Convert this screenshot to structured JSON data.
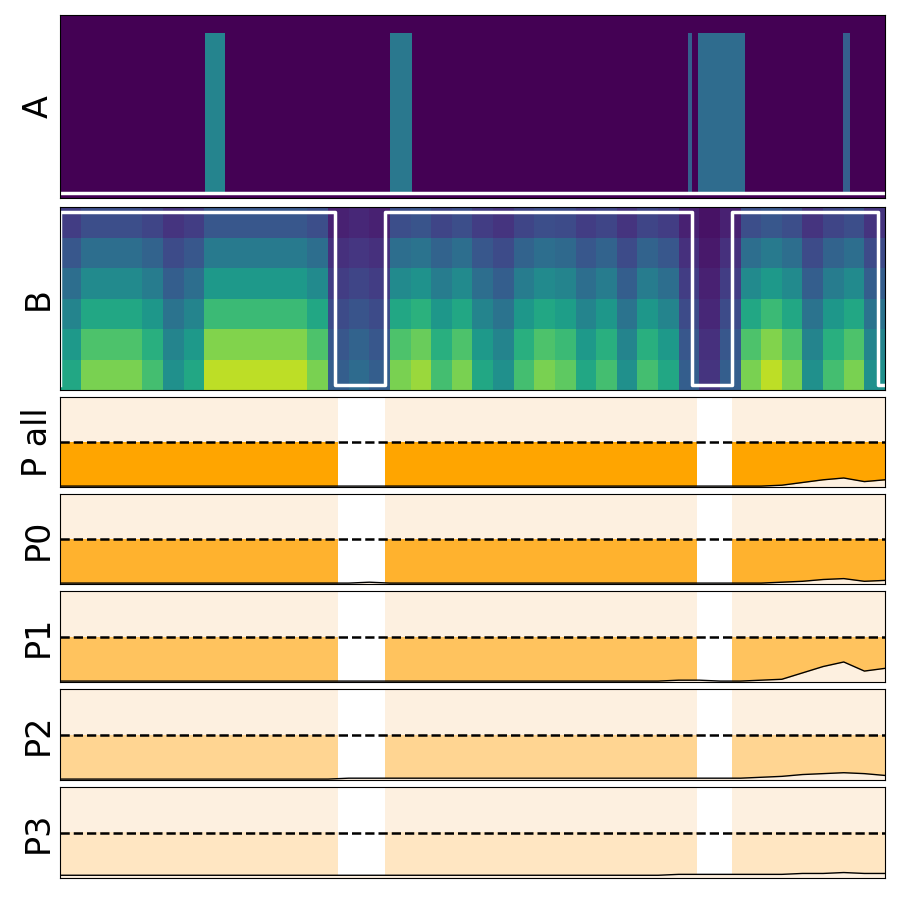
{
  "chart_data": [
    {
      "type": "spectrogram_segments",
      "ylabel": "A",
      "xlim": [
        0,
        100
      ],
      "clim": [
        0,
        1
      ],
      "tick_labels": false,
      "segments": [
        {
          "start": 17.6,
          "end": 20.0,
          "level": 0.45
        },
        {
          "start": 40.0,
          "end": 42.7,
          "level": 0.4
        },
        {
          "start": 76.1,
          "end": 76.6,
          "level": 0.3
        },
        {
          "start": 77.3,
          "end": 83.0,
          "level": 0.35
        },
        {
          "start": 94.9,
          "end": 95.8,
          "level": 0.3
        }
      ],
      "label_segments": []
    },
    {
      "type": "heatmap",
      "ylabel": "B",
      "xlim": [
        0,
        100
      ],
      "clim": [
        0,
        1
      ],
      "tick_labels": false,
      "cells": [
        [
          0.6,
          0.8,
          0.8,
          0.8,
          0.7,
          0.5,
          0.6,
          0.9,
          0.9,
          0.9,
          0.9,
          0.9,
          0.8,
          0.3,
          0.35,
          0.3,
          0.8,
          0.85,
          0.7,
          0.8,
          0.6,
          0.5,
          0.7,
          0.8,
          0.75,
          0.6,
          0.7,
          0.5,
          0.7,
          0.6,
          0.3,
          0.15,
          0.3,
          0.8,
          0.9,
          0.8,
          0.5,
          0.7,
          0.8,
          0.5
        ],
        [
          0.54,
          0.72,
          0.72,
          0.72,
          0.63,
          0.45,
          0.54,
          0.81,
          0.81,
          0.81,
          0.81,
          0.81,
          0.72,
          0.27,
          0.32,
          0.27,
          0.72,
          0.77,
          0.63,
          0.72,
          0.54,
          0.45,
          0.63,
          0.72,
          0.68,
          0.54,
          0.63,
          0.45,
          0.63,
          0.54,
          0.27,
          0.14,
          0.27,
          0.72,
          0.81,
          0.72,
          0.45,
          0.63,
          0.72,
          0.45
        ],
        [
          0.45,
          0.6,
          0.6,
          0.6,
          0.53,
          0.38,
          0.45,
          0.68,
          0.68,
          0.68,
          0.68,
          0.68,
          0.6,
          0.23,
          0.26,
          0.23,
          0.6,
          0.64,
          0.53,
          0.6,
          0.45,
          0.38,
          0.53,
          0.6,
          0.56,
          0.45,
          0.53,
          0.38,
          0.53,
          0.45,
          0.23,
          0.11,
          0.23,
          0.6,
          0.68,
          0.6,
          0.38,
          0.53,
          0.6,
          0.38
        ],
        [
          0.36,
          0.48,
          0.48,
          0.48,
          0.42,
          0.3,
          0.36,
          0.54,
          0.54,
          0.54,
          0.54,
          0.54,
          0.48,
          0.18,
          0.21,
          0.18,
          0.48,
          0.51,
          0.42,
          0.48,
          0.36,
          0.3,
          0.42,
          0.48,
          0.45,
          0.36,
          0.42,
          0.3,
          0.42,
          0.36,
          0.18,
          0.09,
          0.18,
          0.48,
          0.54,
          0.48,
          0.3,
          0.42,
          0.48,
          0.3
        ],
        [
          0.27,
          0.36,
          0.36,
          0.36,
          0.32,
          0.23,
          0.27,
          0.41,
          0.41,
          0.41,
          0.41,
          0.41,
          0.36,
          0.14,
          0.16,
          0.14,
          0.36,
          0.38,
          0.32,
          0.36,
          0.27,
          0.23,
          0.32,
          0.36,
          0.34,
          0.27,
          0.32,
          0.23,
          0.32,
          0.27,
          0.14,
          0.07,
          0.14,
          0.36,
          0.41,
          0.36,
          0.23,
          0.32,
          0.36,
          0.23
        ],
        [
          0.18,
          0.24,
          0.24,
          0.24,
          0.21,
          0.15,
          0.18,
          0.27,
          0.27,
          0.27,
          0.27,
          0.27,
          0.24,
          0.09,
          0.11,
          0.09,
          0.24,
          0.26,
          0.21,
          0.24,
          0.18,
          0.15,
          0.21,
          0.24,
          0.23,
          0.18,
          0.21,
          0.15,
          0.21,
          0.18,
          0.09,
          0.05,
          0.09,
          0.24,
          0.27,
          0.24,
          0.15,
          0.21,
          0.24,
          0.15
        ]
      ],
      "label_segments": [
        [
          0,
          33.3
        ],
        [
          39.4,
          76.6
        ],
        [
          81.5,
          99.2
        ]
      ]
    },
    {
      "type": "line",
      "ylabel": "P all",
      "xlim": [
        0,
        100
      ],
      "ylim": [
        0,
        1
      ],
      "threshold": 0.5,
      "tick_labels": false,
      "color": "#ffa500",
      "speech_segments": [
        [
          0,
          33.7
        ],
        [
          39.4,
          77.2
        ],
        [
          81.5,
          100
        ]
      ],
      "x": [
        0,
        2.5,
        5,
        7.5,
        10,
        12.5,
        15,
        17.5,
        20,
        22.5,
        25,
        27.5,
        30,
        32.5,
        35,
        37.5,
        40,
        42.5,
        45,
        47.5,
        50,
        52.5,
        55,
        57.5,
        60,
        62.5,
        65,
        67.5,
        70,
        72.5,
        75,
        77.5,
        80,
        82.5,
        85,
        87.5,
        90,
        92.5,
        95,
        97.5,
        100
      ],
      "values": [
        0.01,
        0.01,
        0.01,
        0.01,
        0.01,
        0.01,
        0.01,
        0.01,
        0.01,
        0.01,
        0.01,
        0.01,
        0.01,
        0.01,
        0.01,
        0.01,
        0.01,
        0.01,
        0.01,
        0.01,
        0.01,
        0.01,
        0.01,
        0.01,
        0.01,
        0.01,
        0.01,
        0.01,
        0.01,
        0.01,
        0.01,
        0.01,
        0.01,
        0.01,
        0.01,
        0.02,
        0.05,
        0.08,
        0.1,
        0.06,
        0.08
      ]
    },
    {
      "type": "line",
      "ylabel": "P0",
      "xlim": [
        0,
        100
      ],
      "ylim": [
        0,
        1
      ],
      "threshold": 0.5,
      "tick_labels": false,
      "color": "#ffb22e",
      "speech_segments": [
        [
          0,
          33.7
        ],
        [
          39.4,
          77.2
        ],
        [
          81.5,
          100
        ]
      ],
      "x": [
        0,
        2.5,
        5,
        7.5,
        10,
        12.5,
        15,
        17.5,
        20,
        22.5,
        25,
        27.5,
        30,
        32.5,
        35,
        37.5,
        40,
        42.5,
        45,
        47.5,
        50,
        52.5,
        55,
        57.5,
        60,
        62.5,
        65,
        67.5,
        70,
        72.5,
        75,
        77.5,
        80,
        82.5,
        85,
        87.5,
        90,
        92.5,
        95,
        97.5,
        100
      ],
      "values": [
        0.01,
        0.01,
        0.01,
        0.01,
        0.01,
        0.01,
        0.01,
        0.01,
        0.01,
        0.01,
        0.01,
        0.01,
        0.01,
        0.01,
        0.01,
        0.02,
        0.01,
        0.01,
        0.01,
        0.01,
        0.01,
        0.01,
        0.01,
        0.01,
        0.01,
        0.01,
        0.01,
        0.01,
        0.01,
        0.01,
        0.01,
        0.01,
        0.01,
        0.01,
        0.01,
        0.02,
        0.03,
        0.05,
        0.06,
        0.03,
        0.04
      ]
    },
    {
      "type": "line",
      "ylabel": "P1",
      "xlim": [
        0,
        100
      ],
      "ylim": [
        0,
        1
      ],
      "threshold": 0.5,
      "tick_labels": false,
      "color": "#ffc35e",
      "speech_segments": [
        [
          0,
          33.7
        ],
        [
          39.4,
          77.2
        ],
        [
          81.5,
          100
        ]
      ],
      "x": [
        0,
        2.5,
        5,
        7.5,
        10,
        12.5,
        15,
        17.5,
        20,
        22.5,
        25,
        27.5,
        30,
        32.5,
        35,
        37.5,
        40,
        42.5,
        45,
        47.5,
        50,
        52.5,
        55,
        57.5,
        60,
        62.5,
        65,
        67.5,
        70,
        72.5,
        75,
        77.5,
        80,
        82.5,
        85,
        87.5,
        90,
        92.5,
        95,
        97.5,
        100
      ],
      "values": [
        0.01,
        0.01,
        0.01,
        0.01,
        0.01,
        0.01,
        0.01,
        0.01,
        0.01,
        0.01,
        0.01,
        0.01,
        0.01,
        0.01,
        0.01,
        0.01,
        0.01,
        0.01,
        0.01,
        0.01,
        0.01,
        0.01,
        0.01,
        0.01,
        0.01,
        0.01,
        0.01,
        0.01,
        0.01,
        0.01,
        0.02,
        0.02,
        0.01,
        0.01,
        0.02,
        0.03,
        0.1,
        0.17,
        0.22,
        0.12,
        0.15
      ]
    },
    {
      "type": "line",
      "ylabel": "P2",
      "xlim": [
        0,
        100
      ],
      "ylim": [
        0,
        1
      ],
      "threshold": 0.5,
      "tick_labels": false,
      "color": "#ffd592",
      "speech_segments": [
        [
          0,
          33.7
        ],
        [
          39.4,
          77.2
        ],
        [
          81.5,
          100
        ]
      ],
      "x": [
        0,
        2.5,
        5,
        7.5,
        10,
        12.5,
        15,
        17.5,
        20,
        22.5,
        25,
        27.5,
        30,
        32.5,
        35,
        37.5,
        40,
        42.5,
        45,
        47.5,
        50,
        52.5,
        55,
        57.5,
        60,
        62.5,
        65,
        67.5,
        70,
        72.5,
        75,
        77.5,
        80,
        82.5,
        85,
        87.5,
        90,
        92.5,
        95,
        97.5,
        100
      ],
      "values": [
        0.01,
        0.01,
        0.01,
        0.01,
        0.01,
        0.01,
        0.01,
        0.01,
        0.01,
        0.01,
        0.01,
        0.01,
        0.01,
        0.01,
        0.02,
        0.02,
        0.02,
        0.02,
        0.02,
        0.02,
        0.02,
        0.02,
        0.02,
        0.02,
        0.02,
        0.02,
        0.02,
        0.02,
        0.02,
        0.02,
        0.02,
        0.02,
        0.02,
        0.02,
        0.03,
        0.04,
        0.06,
        0.07,
        0.08,
        0.07,
        0.05
      ]
    },
    {
      "type": "line",
      "ylabel": "P3",
      "xlim": [
        0,
        100
      ],
      "ylim": [
        0,
        1
      ],
      "threshold": 0.5,
      "tick_labels": false,
      "color": "#ffe6c2",
      "speech_segments": [
        [
          0,
          33.7
        ],
        [
          39.4,
          77.2
        ],
        [
          81.5,
          100
        ]
      ],
      "x": [
        0,
        2.5,
        5,
        7.5,
        10,
        12.5,
        15,
        17.5,
        20,
        22.5,
        25,
        27.5,
        30,
        32.5,
        35,
        37.5,
        40,
        42.5,
        45,
        47.5,
        50,
        52.5,
        55,
        57.5,
        60,
        62.5,
        65,
        67.5,
        70,
        72.5,
        75,
        77.5,
        80,
        82.5,
        85,
        87.5,
        90,
        92.5,
        95,
        97.5,
        100
      ],
      "values": [
        0.03,
        0.03,
        0.03,
        0.03,
        0.03,
        0.03,
        0.03,
        0.03,
        0.03,
        0.03,
        0.03,
        0.03,
        0.03,
        0.03,
        0.03,
        0.03,
        0.03,
        0.03,
        0.03,
        0.03,
        0.03,
        0.03,
        0.03,
        0.03,
        0.03,
        0.03,
        0.03,
        0.03,
        0.03,
        0.03,
        0.04,
        0.04,
        0.04,
        0.04,
        0.04,
        0.04,
        0.05,
        0.05,
        0.06,
        0.05,
        0.05
      ]
    }
  ]
}
